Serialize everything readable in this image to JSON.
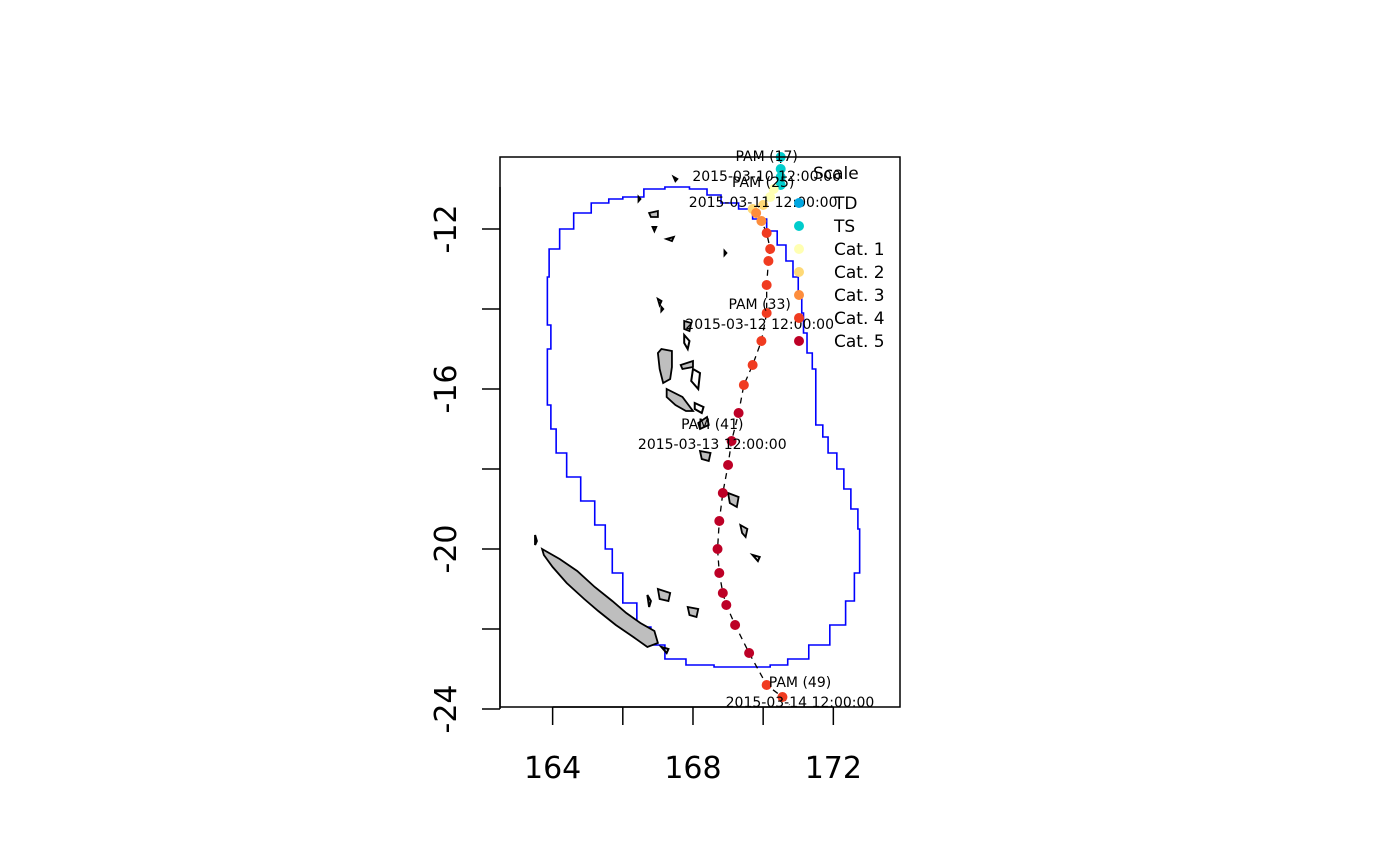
{
  "chart_data": {
    "type": "scatter",
    "title": "",
    "xlabel": "",
    "ylabel": "",
    "xlim": [
      162.5,
      173.9
    ],
    "ylim": [
      -23.95,
      -10.2
    ],
    "x_ticks": [
      {
        "value": 164,
        "label": "164"
      },
      {
        "value": 166,
        "label": ""
      },
      {
        "value": 168,
        "label": "168"
      },
      {
        "value": 170,
        "label": ""
      },
      {
        "value": 172,
        "label": "172"
      }
    ],
    "y_ticks": [
      {
        "value": -10,
        "label": ""
      },
      {
        "value": -12,
        "label": "-12"
      },
      {
        "value": -14,
        "label": ""
      },
      {
        "value": -16,
        "label": "-16"
      },
      {
        "value": -18,
        "label": ""
      },
      {
        "value": -20,
        "label": "-20"
      },
      {
        "value": -22,
        "label": ""
      },
      {
        "value": -24,
        "label": "-24"
      }
    ],
    "grid": false,
    "track": [
      {
        "lon": 170.5,
        "lat": -10.2,
        "cat": "TS"
      },
      {
        "lon": 170.5,
        "lat": -10.5,
        "cat": "TS"
      },
      {
        "lon": 170.5,
        "lat": -10.7,
        "cat": "TS"
      },
      {
        "lon": 170.5,
        "lat": -10.9,
        "cat": "TS"
      },
      {
        "lon": 170.3,
        "lat": -11.0,
        "cat": "Cat. 1"
      },
      {
        "lon": 170.2,
        "lat": -11.2,
        "cat": "Cat. 1"
      },
      {
        "lon": 170.0,
        "lat": -11.4,
        "cat": "Cat. 2"
      },
      {
        "lon": 169.7,
        "lat": -11.5,
        "cat": "Cat. 2"
      },
      {
        "lon": 169.8,
        "lat": -11.6,
        "cat": "Cat. 3"
      },
      {
        "lon": 169.95,
        "lat": -11.8,
        "cat": "Cat. 3"
      },
      {
        "lon": 170.1,
        "lat": -12.1,
        "cat": "Cat. 4"
      },
      {
        "lon": 170.2,
        "lat": -12.5,
        "cat": "Cat. 4"
      },
      {
        "lon": 170.15,
        "lat": -12.8,
        "cat": "Cat. 4"
      },
      {
        "lon": 170.1,
        "lat": -13.4,
        "cat": "Cat. 4"
      },
      {
        "lon": 170.1,
        "lat": -14.1,
        "cat": "Cat. 4"
      },
      {
        "lon": 169.95,
        "lat": -14.8,
        "cat": "Cat. 4"
      },
      {
        "lon": 169.7,
        "lat": -15.4,
        "cat": "Cat. 4"
      },
      {
        "lon": 169.45,
        "lat": -15.9,
        "cat": "Cat. 4"
      },
      {
        "lon": 169.3,
        "lat": -16.6,
        "cat": "Cat. 5"
      },
      {
        "lon": 169.1,
        "lat": -17.3,
        "cat": "Cat. 5"
      },
      {
        "lon": 169.0,
        "lat": -17.9,
        "cat": "Cat. 5"
      },
      {
        "lon": 168.85,
        "lat": -18.6,
        "cat": "Cat. 5"
      },
      {
        "lon": 168.75,
        "lat": -19.3,
        "cat": "Cat. 5"
      },
      {
        "lon": 168.7,
        "lat": -20.0,
        "cat": "Cat. 5"
      },
      {
        "lon": 168.75,
        "lat": -20.6,
        "cat": "Cat. 5"
      },
      {
        "lon": 168.85,
        "lat": -21.1,
        "cat": "Cat. 5"
      },
      {
        "lon": 168.95,
        "lat": -21.4,
        "cat": "Cat. 5"
      },
      {
        "lon": 169.2,
        "lat": -21.9,
        "cat": "Cat. 5"
      },
      {
        "lon": 169.6,
        "lat": -22.6,
        "cat": "Cat. 5"
      },
      {
        "lon": 170.1,
        "lat": -23.4,
        "cat": "Cat. 4"
      },
      {
        "lon": 170.55,
        "lat": -23.7,
        "cat": "Cat. 4"
      }
    ],
    "track_line_end": {
      "lon": 170.75,
      "lat": -23.9
    },
    "annotations": [
      {
        "name": "PAM (17)",
        "time": "2015-03-10 12:00:00",
        "lon": 170.1,
        "lat": -10.55
      },
      {
        "name": "PAM (25)",
        "time": "2015-03-11 12:00:00",
        "lon": 170.0,
        "lat": -11.2
      },
      {
        "name": "PAM (33)",
        "time": "2015-03-12 12:00:00",
        "lon": 169.9,
        "lat": -14.25
      },
      {
        "name": "PAM (41)",
        "time": "2015-03-13 12:00:00",
        "lon": 168.55,
        "lat": -17.25
      },
      {
        "name": "PAM (49)",
        "time": "2015-03-14 12:00:00",
        "lon": 171.05,
        "lat": -23.7
      }
    ],
    "legend": {
      "title": "Scale",
      "placement": "top-right",
      "entries": [
        {
          "label": "TD",
          "color": "#00a6e0"
        },
        {
          "label": "TS",
          "color": "#00cccc"
        },
        {
          "label": "Cat. 1",
          "color": "#ffffb2"
        },
        {
          "label": "Cat. 2",
          "color": "#fed976"
        },
        {
          "label": "Cat. 3",
          "color": "#fd8d3c"
        },
        {
          "label": "Cat. 4",
          "color": "#f03b20"
        },
        {
          "label": "Cat. 5",
          "color": "#bd0026"
        }
      ]
    },
    "buffer_outline": [
      [
        166.3,
        -11.2
      ],
      [
        166.6,
        -11.0
      ],
      [
        167.2,
        -10.95
      ],
      [
        167.9,
        -11.0
      ],
      [
        168.4,
        -11.15
      ],
      [
        168.8,
        -11.35
      ],
      [
        169.3,
        -11.5
      ],
      [
        169.7,
        -11.75
      ],
      [
        170.1,
        -12.05
      ],
      [
        170.4,
        -12.4
      ],
      [
        170.65,
        -12.8
      ],
      [
        170.85,
        -13.2
      ],
      [
        171.0,
        -13.6
      ],
      [
        171.1,
        -14.1
      ],
      [
        171.15,
        -14.6
      ],
      [
        171.25,
        -15.1
      ],
      [
        171.4,
        -15.5
      ],
      [
        171.5,
        -15.9
      ],
      [
        171.5,
        -16.9
      ],
      [
        171.7,
        -17.2
      ],
      [
        171.85,
        -17.6
      ],
      [
        172.1,
        -18.0
      ],
      [
        172.3,
        -18.5
      ],
      [
        172.5,
        -19.0
      ],
      [
        172.7,
        -19.5
      ],
      [
        172.75,
        -20.0
      ],
      [
        172.75,
        -20.6
      ],
      [
        172.6,
        -21.3
      ],
      [
        172.35,
        -21.9
      ],
      [
        171.9,
        -22.4
      ],
      [
        171.3,
        -22.75
      ],
      [
        170.7,
        -22.9
      ],
      [
        170.2,
        -22.95
      ],
      [
        169.3,
        -22.95
      ],
      [
        168.6,
        -22.9
      ],
      [
        167.8,
        -22.75
      ],
      [
        167.2,
        -22.4
      ],
      [
        166.8,
        -21.95
      ],
      [
        166.4,
        -21.35
      ],
      [
        166.0,
        -20.6
      ],
      [
        165.7,
        -20.0
      ],
      [
        165.5,
        -19.4
      ],
      [
        165.2,
        -18.8
      ],
      [
        164.8,
        -18.2
      ],
      [
        164.4,
        -17.6
      ],
      [
        164.1,
        -17.0
      ],
      [
        163.95,
        -16.4
      ],
      [
        163.85,
        -15.8
      ],
      [
        163.85,
        -15.0
      ],
      [
        163.95,
        -14.4
      ],
      [
        163.85,
        -13.8
      ],
      [
        163.85,
        -13.2
      ],
      [
        163.9,
        -12.5
      ],
      [
        164.2,
        -12.0
      ],
      [
        164.6,
        -11.6
      ],
      [
        165.1,
        -11.35
      ],
      [
        165.6,
        -11.25
      ],
      [
        166.0,
        -11.2
      ],
      [
        166.3,
        -11.2
      ]
    ],
    "islands": [
      {
        "fill": true,
        "points": [
          [
            163.7,
            -20.0
          ],
          [
            164.2,
            -20.25
          ],
          [
            164.7,
            -20.55
          ],
          [
            165.2,
            -20.95
          ],
          [
            165.7,
            -21.3
          ],
          [
            166.1,
            -21.6
          ],
          [
            166.5,
            -21.85
          ],
          [
            166.9,
            -22.05
          ],
          [
            167.0,
            -22.35
          ],
          [
            166.7,
            -22.45
          ],
          [
            166.3,
            -22.2
          ],
          [
            165.8,
            -21.9
          ],
          [
            165.3,
            -21.55
          ],
          [
            164.9,
            -21.25
          ],
          [
            164.4,
            -20.85
          ],
          [
            164.0,
            -20.45
          ],
          [
            163.75,
            -20.15
          ],
          [
            163.7,
            -20.0
          ]
        ]
      },
      {
        "fill": true,
        "points": [
          [
            167.1,
            -15.0
          ],
          [
            167.4,
            -15.05
          ],
          [
            167.4,
            -15.45
          ],
          [
            167.35,
            -15.75
          ],
          [
            167.15,
            -15.85
          ],
          [
            167.05,
            -15.5
          ],
          [
            167.0,
            -15.1
          ],
          [
            167.1,
            -15.0
          ]
        ]
      },
      {
        "fill": true,
        "points": [
          [
            167.25,
            -16.0
          ],
          [
            167.7,
            -16.2
          ],
          [
            168.0,
            -16.55
          ],
          [
            167.8,
            -16.55
          ],
          [
            167.5,
            -16.4
          ],
          [
            167.25,
            -16.2
          ],
          [
            167.25,
            -16.0
          ]
        ]
      },
      {
        "fill": true,
        "points": [
          [
            168.15,
            -16.85
          ],
          [
            168.4,
            -16.7
          ],
          [
            168.45,
            -16.9
          ],
          [
            168.2,
            -17.0
          ],
          [
            168.15,
            -16.85
          ]
        ]
      },
      {
        "fill": true,
        "points": [
          [
            168.2,
            -17.55
          ],
          [
            168.5,
            -17.6
          ],
          [
            168.45,
            -17.8
          ],
          [
            168.25,
            -17.75
          ],
          [
            168.2,
            -17.55
          ]
        ]
      },
      {
        "fill": true,
        "points": [
          [
            169.0,
            -18.6
          ],
          [
            169.3,
            -18.7
          ],
          [
            169.25,
            -18.95
          ],
          [
            169.05,
            -18.85
          ],
          [
            169.0,
            -18.6
          ]
        ]
      },
      {
        "fill": true,
        "points": [
          [
            169.35,
            -19.4
          ],
          [
            169.55,
            -19.5
          ],
          [
            169.5,
            -19.7
          ],
          [
            169.4,
            -19.6
          ],
          [
            169.35,
            -19.4
          ]
        ]
      },
      {
        "fill": true,
        "points": [
          [
            167.0,
            -21.0
          ],
          [
            167.35,
            -21.1
          ],
          [
            167.3,
            -21.3
          ],
          [
            167.05,
            -21.25
          ],
          [
            167.0,
            -21.0
          ]
        ]
      },
      {
        "fill": true,
        "points": [
          [
            167.85,
            -21.45
          ],
          [
            168.15,
            -21.5
          ],
          [
            168.1,
            -21.7
          ],
          [
            167.9,
            -21.65
          ],
          [
            167.85,
            -21.45
          ]
        ]
      },
      {
        "fill": true,
        "points": [
          [
            167.65,
            -15.4
          ],
          [
            168.0,
            -15.3
          ],
          [
            168.0,
            -15.45
          ],
          [
            167.7,
            -15.5
          ],
          [
            167.65,
            -15.4
          ]
        ]
      },
      {
        "fill": true,
        "points": [
          [
            166.75,
            -11.6
          ],
          [
            167.0,
            -11.55
          ],
          [
            167.0,
            -11.7
          ],
          [
            166.8,
            -11.7
          ],
          [
            166.75,
            -11.6
          ]
        ]
      },
      {
        "fill": true,
        "points": [
          [
            167.75,
            -14.3
          ],
          [
            167.95,
            -14.35
          ],
          [
            167.9,
            -14.55
          ],
          [
            167.75,
            -14.5
          ],
          [
            167.75,
            -14.3
          ]
        ]
      },
      {
        "fill": false,
        "points": [
          [
            167.75,
            -14.65
          ],
          [
            167.9,
            -14.8
          ],
          [
            167.85,
            -15.0
          ],
          [
            167.75,
            -14.85
          ],
          [
            167.75,
            -14.65
          ]
        ]
      },
      {
        "fill": false,
        "points": [
          [
            168.0,
            -15.5
          ],
          [
            168.2,
            -15.6
          ],
          [
            168.15,
            -16.0
          ],
          [
            167.95,
            -15.8
          ],
          [
            168.0,
            -15.5
          ]
        ]
      },
      {
        "fill": false,
        "points": [
          [
            168.05,
            -16.35
          ],
          [
            168.3,
            -16.45
          ],
          [
            168.25,
            -16.6
          ],
          [
            168.05,
            -16.5
          ],
          [
            168.05,
            -16.35
          ]
        ]
      },
      {
        "fill": false,
        "points": [
          [
            167.25,
            -12.25
          ],
          [
            167.45,
            -12.2
          ],
          [
            167.4,
            -12.3
          ],
          [
            167.25,
            -12.25
          ]
        ]
      },
      {
        "fill": false,
        "points": [
          [
            167.0,
            -13.75
          ],
          [
            167.1,
            -13.8
          ],
          [
            167.05,
            -13.9
          ],
          [
            167.0,
            -13.75
          ]
        ]
      },
      {
        "fill": false,
        "points": [
          [
            167.1,
            -13.95
          ],
          [
            167.15,
            -14.0
          ],
          [
            167.1,
            -14.05
          ],
          [
            167.1,
            -13.95
          ]
        ]
      },
      {
        "fill": false,
        "points": [
          [
            166.85,
            -11.95
          ],
          [
            166.95,
            -11.95
          ],
          [
            166.9,
            -12.05
          ],
          [
            166.85,
            -11.95
          ]
        ]
      },
      {
        "fill": false,
        "points": [
          [
            166.45,
            -11.2
          ],
          [
            166.5,
            -11.25
          ],
          [
            166.45,
            -11.3
          ],
          [
            166.45,
            -11.2
          ]
        ]
      },
      {
        "fill": false,
        "points": [
          [
            167.45,
            -10.7
          ],
          [
            167.55,
            -10.75
          ],
          [
            167.5,
            -10.8
          ],
          [
            167.45,
            -10.7
          ]
        ]
      },
      {
        "fill": false,
        "points": [
          [
            168.9,
            -12.55
          ],
          [
            168.95,
            -12.6
          ],
          [
            168.9,
            -12.65
          ],
          [
            168.9,
            -12.55
          ]
        ]
      },
      {
        "fill": false,
        "points": [
          [
            166.7,
            -21.15
          ],
          [
            166.8,
            -21.3
          ],
          [
            166.75,
            -21.45
          ],
          [
            166.7,
            -21.15
          ]
        ]
      },
      {
        "fill": false,
        "points": [
          [
            167.1,
            -22.45
          ],
          [
            167.3,
            -22.5
          ],
          [
            167.25,
            -22.6
          ],
          [
            167.1,
            -22.45
          ]
        ]
      },
      {
        "fill": false,
        "points": [
          [
            169.7,
            -20.15
          ],
          [
            169.9,
            -20.2
          ],
          [
            169.85,
            -20.3
          ],
          [
            169.7,
            -20.15
          ]
        ]
      },
      {
        "fill": false,
        "points": [
          [
            163.5,
            -19.65
          ],
          [
            163.55,
            -19.8
          ],
          [
            163.5,
            -19.9
          ],
          [
            163.5,
            -19.65
          ]
        ]
      }
    ]
  }
}
